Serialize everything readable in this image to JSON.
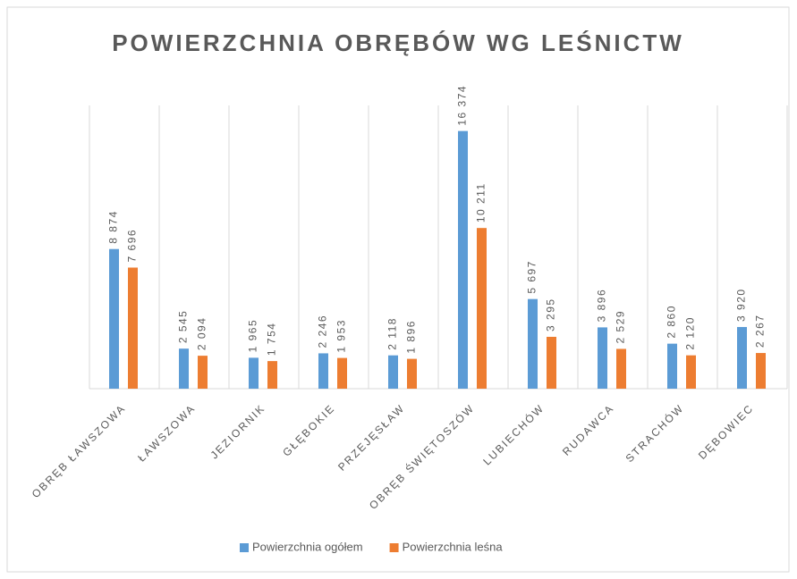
{
  "chart_data": {
    "type": "bar",
    "title": "POWIERZCHNIA OBRĘBÓW WG LEŚNICTW",
    "categories": [
      "OBRĘB ŁAWSZOWA",
      "ŁAWSZOWA",
      "JEZIORNIK",
      "GŁĘBOKIE",
      "PRZEJĘSŁAW",
      "OBRĘB ŚWIĘTOSZÓW",
      "LUBIECHÓW",
      "RUDAWCA",
      "STRACHÓW",
      "DĘBOWIEC"
    ],
    "series": [
      {
        "name": "Powierzchnia ogółem",
        "color": "#5b9bd5",
        "values": [
          8874,
          2545,
          1965,
          2246,
          2118,
          16374,
          5697,
          3896,
          2860,
          3920
        ],
        "value_labels": [
          "8 874",
          "2 545",
          "1 965",
          "2 246",
          "2 118",
          "16 374",
          "5 697",
          "3 896",
          "2 860",
          "3 920"
        ]
      },
      {
        "name": "Powierzchnia leśna",
        "color": "#ed7d31",
        "values": [
          7696,
          2094,
          1754,
          1953,
          1896,
          10211,
          3295,
          2529,
          2120,
          2267
        ],
        "value_labels": [
          "7 696",
          "2 094",
          "1 754",
          "1 953",
          "1 896",
          "10 211",
          "3 295",
          "2 529",
          "2 120",
          "2 267"
        ]
      }
    ],
    "ylim": [
      0,
      18000
    ],
    "legend": "bottom"
  }
}
